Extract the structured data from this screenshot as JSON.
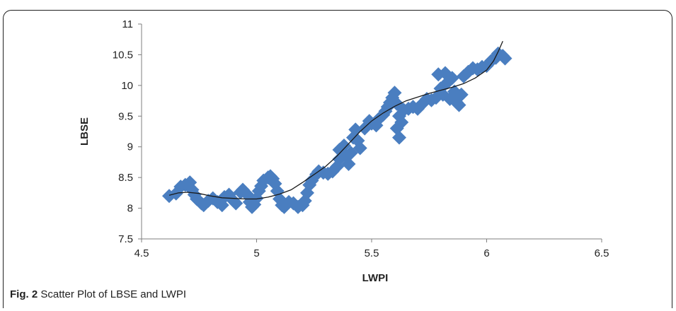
{
  "caption": {
    "label": "Fig. 2",
    "text": "Scatter Plot of LBSE and LWPI"
  },
  "colors": {
    "marker": "#4a7ec0",
    "trend": "#1a1a1a",
    "axis": "#7f7f7f",
    "frame": "#222222"
  },
  "chart_data": {
    "type": "scatter",
    "title": "",
    "xlabel": "LWPI",
    "ylabel": "LBSE",
    "xlim": [
      4.5,
      6.5
    ],
    "ylim": [
      7.5,
      11
    ],
    "xticks": [
      "4.5",
      "5",
      "5.5",
      "6",
      "6.5"
    ],
    "yticks": [
      "7.5",
      "8",
      "8.5",
      "9",
      "9.5",
      "10",
      "10.5",
      "11"
    ],
    "grid": false,
    "legend": "none",
    "marker": "diamond",
    "trendline": "polynomial",
    "points": [
      [
        4.62,
        8.2
      ],
      [
        4.65,
        8.24
      ],
      [
        4.67,
        8.35
      ],
      [
        4.69,
        8.38
      ],
      [
        4.71,
        8.42
      ],
      [
        4.72,
        8.3
      ],
      [
        4.73,
        8.22
      ],
      [
        4.74,
        8.15
      ],
      [
        4.76,
        8.08
      ],
      [
        4.77,
        8.05
      ],
      [
        4.79,
        8.12
      ],
      [
        4.81,
        8.16
      ],
      [
        4.83,
        8.1
      ],
      [
        4.85,
        8.05
      ],
      [
        4.86,
        8.18
      ],
      [
        4.88,
        8.22
      ],
      [
        4.9,
        8.12
      ],
      [
        4.91,
        8.08
      ],
      [
        4.93,
        8.26
      ],
      [
        4.94,
        8.3
      ],
      [
        4.96,
        8.22
      ],
      [
        4.97,
        8.1
      ],
      [
        4.98,
        8.02
      ],
      [
        4.99,
        8.06
      ],
      [
        5.0,
        8.16
      ],
      [
        5.01,
        8.28
      ],
      [
        5.02,
        8.36
      ],
      [
        5.03,
        8.45
      ],
      [
        5.05,
        8.5
      ],
      [
        5.06,
        8.52
      ],
      [
        5.07,
        8.48
      ],
      [
        5.08,
        8.4
      ],
      [
        5.09,
        8.28
      ],
      [
        5.1,
        8.15
      ],
      [
        5.11,
        8.05
      ],
      [
        5.12,
        8.02
      ],
      [
        5.14,
        8.1
      ],
      [
        5.16,
        8.08
      ],
      [
        5.18,
        8.02
      ],
      [
        5.2,
        8.05
      ],
      [
        5.21,
        8.12
      ],
      [
        5.22,
        8.25
      ],
      [
        5.23,
        8.38
      ],
      [
        5.24,
        8.45
      ],
      [
        5.26,
        8.55
      ],
      [
        5.27,
        8.6
      ],
      [
        5.29,
        8.58
      ],
      [
        5.31,
        8.56
      ],
      [
        5.33,
        8.6
      ],
      [
        5.35,
        8.68
      ],
      [
        5.36,
        8.8
      ],
      [
        5.36,
        8.95
      ],
      [
        5.38,
        9.02
      ],
      [
        5.39,
        8.85
      ],
      [
        5.4,
        8.72
      ],
      [
        5.41,
        8.9
      ],
      [
        5.42,
        9.15
      ],
      [
        5.43,
        9.28
      ],
      [
        5.44,
        9.1
      ],
      [
        5.45,
        8.98
      ],
      [
        5.47,
        9.3
      ],
      [
        5.49,
        9.42
      ],
      [
        5.5,
        9.38
      ],
      [
        5.52,
        9.35
      ],
      [
        5.53,
        9.45
      ],
      [
        5.55,
        9.52
      ],
      [
        5.56,
        9.58
      ],
      [
        5.57,
        9.65
      ],
      [
        5.58,
        9.72
      ],
      [
        5.59,
        9.8
      ],
      [
        5.6,
        9.88
      ],
      [
        5.61,
        9.7
      ],
      [
        5.62,
        9.5
      ],
      [
        5.61,
        9.3
      ],
      [
        5.62,
        9.15
      ],
      [
        5.63,
        9.4
      ],
      [
        5.64,
        9.6
      ],
      [
        5.66,
        9.62
      ],
      [
        5.68,
        9.65
      ],
      [
        5.7,
        9.62
      ],
      [
        5.72,
        9.7
      ],
      [
        5.74,
        9.78
      ],
      [
        5.76,
        9.76
      ],
      [
        5.78,
        9.8
      ],
      [
        5.79,
        10.18
      ],
      [
        5.8,
        9.95
      ],
      [
        5.81,
        9.85
      ],
      [
        5.82,
        10.2
      ],
      [
        5.83,
        10.05
      ],
      [
        5.84,
        9.78
      ],
      [
        5.85,
        10.12
      ],
      [
        5.86,
        9.9
      ],
      [
        5.87,
        9.72
      ],
      [
        5.88,
        9.68
      ],
      [
        5.89,
        9.85
      ],
      [
        5.9,
        10.15
      ],
      [
        5.92,
        10.22
      ],
      [
        5.94,
        10.28
      ],
      [
        5.96,
        10.26
      ],
      [
        5.98,
        10.3
      ],
      [
        6.0,
        10.32
      ],
      [
        6.02,
        10.4
      ],
      [
        6.04,
        10.45
      ],
      [
        6.05,
        10.52
      ],
      [
        6.07,
        10.48
      ],
      [
        6.08,
        10.44
      ]
    ],
    "trend_curve": [
      [
        4.62,
        8.21
      ],
      [
        4.66,
        8.25
      ],
      [
        4.7,
        8.26
      ],
      [
        4.75,
        8.24
      ],
      [
        4.8,
        8.2
      ],
      [
        4.85,
        8.17
      ],
      [
        4.9,
        8.16
      ],
      [
        4.95,
        8.15
      ],
      [
        5.0,
        8.15
      ],
      [
        5.05,
        8.18
      ],
      [
        5.1,
        8.23
      ],
      [
        5.15,
        8.3
      ],
      [
        5.2,
        8.42
      ],
      [
        5.25,
        8.55
      ],
      [
        5.3,
        8.68
      ],
      [
        5.35,
        8.85
      ],
      [
        5.4,
        9.05
      ],
      [
        5.45,
        9.25
      ],
      [
        5.5,
        9.42
      ],
      [
        5.55,
        9.55
      ],
      [
        5.6,
        9.66
      ],
      [
        5.65,
        9.75
      ],
      [
        5.7,
        9.81
      ],
      [
        5.75,
        9.87
      ],
      [
        5.8,
        9.92
      ],
      [
        5.85,
        9.97
      ],
      [
        5.9,
        10.03
      ],
      [
        5.95,
        10.12
      ],
      [
        6.0,
        10.25
      ],
      [
        6.03,
        10.4
      ],
      [
        6.05,
        10.55
      ],
      [
        6.07,
        10.72
      ]
    ]
  }
}
